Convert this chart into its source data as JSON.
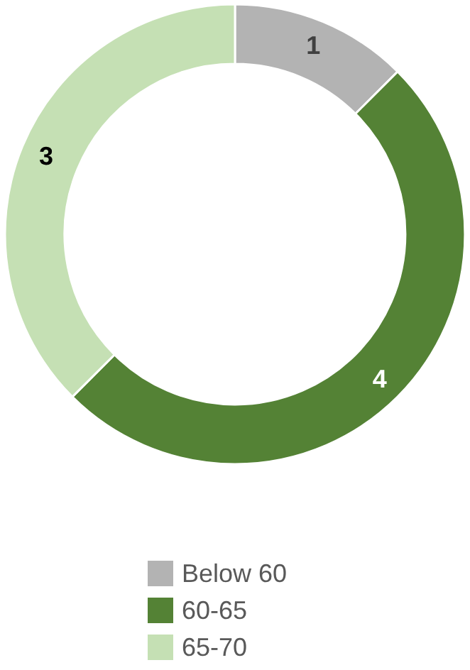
{
  "chart_data": {
    "type": "donut",
    "categories": [
      "Below 60",
      "60-65",
      "65-70"
    ],
    "values": [
      1,
      4,
      3
    ],
    "colors": [
      "#b3b3b3",
      "#548235",
      "#c5e0b4"
    ],
    "data_labels": true,
    "legend": "bottom"
  }
}
